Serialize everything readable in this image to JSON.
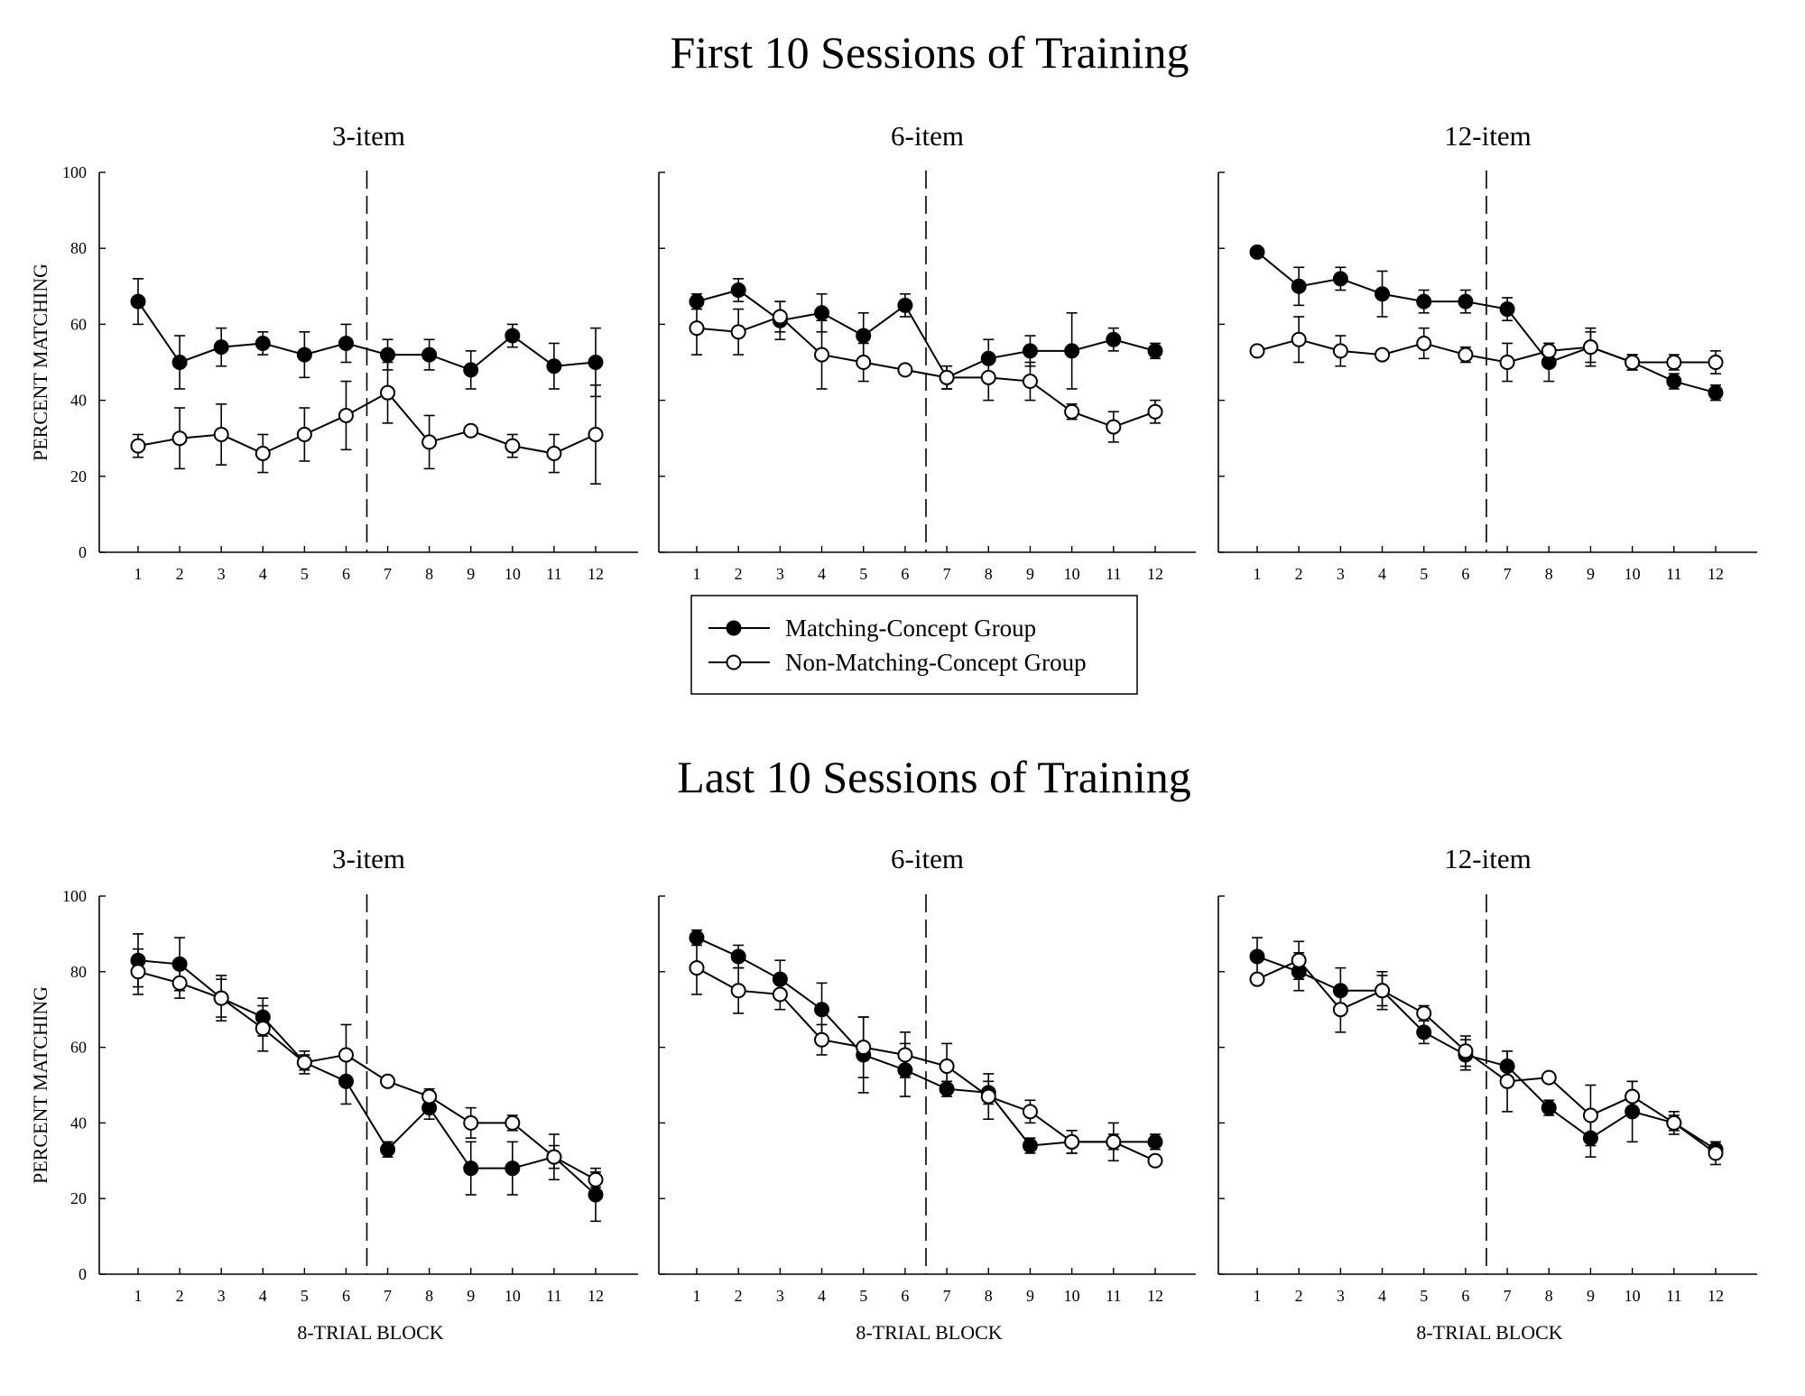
{
  "figure": {
    "colors": {
      "line": "#000000",
      "open_fill": "#ffffff",
      "filled": "#000000"
    }
  },
  "legend": {
    "entries": [
      "Matching-Concept Group",
      "Non-Matching-Concept Group"
    ]
  },
  "chart_data": [
    {
      "type": "line",
      "section_title": "First 10 Sessions of Training",
      "title": "3-item",
      "xlabel": "",
      "ylabel": "PERCENT MATCHING",
      "categories": [
        "1",
        "2",
        "3",
        "4",
        "5",
        "6",
        "7",
        "8",
        "9",
        "10",
        "11",
        "12"
      ],
      "ylim": [
        0,
        100
      ],
      "yticks": [
        "0",
        "20",
        "40",
        "60",
        "80",
        "100"
      ],
      "vline_between": [
        6,
        7
      ],
      "series": [
        {
          "name": "Matching-Concept Group",
          "marker": "filled",
          "values": [
            66,
            50,
            54,
            55,
            52,
            55,
            52,
            52,
            48,
            57,
            49,
            50
          ],
          "errors": [
            6,
            7,
            5,
            3,
            6,
            5,
            4,
            4,
            5,
            3,
            6,
            9
          ]
        },
        {
          "name": "Non-Matching-Concept Group",
          "marker": "open",
          "values": [
            28,
            30,
            31,
            26,
            31,
            36,
            42,
            29,
            32,
            28,
            26,
            31
          ],
          "errors": [
            3,
            8,
            8,
            5,
            7,
            9,
            8,
            7,
            1,
            3,
            5,
            13
          ]
        }
      ]
    },
    {
      "type": "line",
      "section_title": "First 10 Sessions of Training",
      "title": "6-item",
      "xlabel": "",
      "ylabel": "",
      "categories": [
        "1",
        "2",
        "3",
        "4",
        "5",
        "6",
        "7",
        "8",
        "9",
        "10",
        "11",
        "12"
      ],
      "ylim": [
        0,
        100
      ],
      "yticks": [],
      "vline_between": [
        6,
        7
      ],
      "series": [
        {
          "name": "Matching-Concept Group",
          "marker": "filled",
          "values": [
            66,
            69,
            61,
            63,
            57,
            65,
            46,
            51,
            53,
            53,
            56,
            53
          ],
          "errors": [
            2,
            3,
            5,
            5,
            6,
            3,
            3,
            5,
            4,
            10,
            3,
            2
          ]
        },
        {
          "name": "Non-Matching-Concept Group",
          "marker": "open",
          "values": [
            59,
            58,
            62,
            52,
            50,
            48,
            46,
            46,
            45,
            37,
            33,
            37
          ],
          "errors": [
            7,
            6,
            4,
            9,
            5,
            1,
            3,
            6,
            5,
            2,
            4,
            3
          ]
        }
      ]
    },
    {
      "type": "line",
      "section_title": "First 10 Sessions of Training",
      "title": "12-item",
      "xlabel": "",
      "ylabel": "",
      "categories": [
        "1",
        "2",
        "3",
        "4",
        "5",
        "6",
        "7",
        "8",
        "9",
        "10",
        "11",
        "12"
      ],
      "ylim": [
        0,
        100
      ],
      "yticks": [],
      "vline_between": [
        6,
        7
      ],
      "series": [
        {
          "name": "Matching-Concept Group",
          "marker": "filled",
          "values": [
            79,
            70,
            72,
            68,
            66,
            66,
            64,
            50,
            54,
            50,
            45,
            42
          ],
          "errors": [
            1,
            5,
            3,
            6,
            3,
            3,
            3,
            5,
            5,
            2,
            2,
            2
          ]
        },
        {
          "name": "Non-Matching-Concept Group",
          "marker": "open",
          "values": [
            53,
            56,
            53,
            52,
            55,
            52,
            50,
            53,
            54,
            50,
            50,
            50
          ],
          "errors": [
            1,
            6,
            4,
            1,
            4,
            2,
            5,
            2,
            4,
            2,
            2,
            3
          ]
        }
      ]
    },
    {
      "type": "line",
      "section_title": "Last 10 Sessions of Training",
      "title": "3-item",
      "xlabel": "8-TRIAL BLOCK",
      "ylabel": "PERCENT MATCHING",
      "categories": [
        "1",
        "2",
        "3",
        "4",
        "5",
        "6",
        "7",
        "8",
        "9",
        "10",
        "11",
        "12"
      ],
      "ylim": [
        0,
        100
      ],
      "yticks": [
        "0",
        "20",
        "40",
        "60",
        "80",
        "100"
      ],
      "vline_between": [
        6,
        7
      ],
      "series": [
        {
          "name": "Matching-Concept Group",
          "marker": "filled",
          "values": [
            83,
            82,
            73,
            68,
            56,
            51,
            33,
            44,
            28,
            28,
            31,
            21
          ],
          "errors": [
            7,
            7,
            6,
            5,
            3,
            6,
            2,
            3,
            7,
            7,
            6,
            7
          ]
        },
        {
          "name": "Non-Matching-Concept Group",
          "marker": "open",
          "values": [
            80,
            77,
            73,
            65,
            56,
            58,
            51,
            47,
            40,
            40,
            31,
            25
          ],
          "errors": [
            6,
            4,
            5,
            6,
            2,
            8,
            1,
            2,
            4,
            2,
            3,
            2
          ]
        }
      ]
    },
    {
      "type": "line",
      "section_title": "Last 10 Sessions of Training",
      "title": "6-item",
      "xlabel": "8-TRIAL BLOCK",
      "ylabel": "",
      "categories": [
        "1",
        "2",
        "3",
        "4",
        "5",
        "6",
        "7",
        "8",
        "9",
        "10",
        "11",
        "12"
      ],
      "ylim": [
        0,
        100
      ],
      "yticks": [],
      "vline_between": [
        6,
        7
      ],
      "series": [
        {
          "name": "Matching-Concept Group",
          "marker": "filled",
          "values": [
            89,
            84,
            78,
            70,
            58,
            54,
            49,
            48,
            34,
            35,
            35,
            35
          ],
          "errors": [
            2,
            3,
            5,
            7,
            10,
            7,
            2,
            3,
            2,
            3,
            2,
            2
          ]
        },
        {
          "name": "Non-Matching-Concept Group",
          "marker": "open",
          "values": [
            81,
            75,
            74,
            62,
            60,
            58,
            55,
            47,
            43,
            35,
            35,
            30
          ],
          "errors": [
            7,
            6,
            4,
            4,
            8,
            6,
            6,
            6,
            3,
            3,
            5,
            1
          ]
        }
      ]
    },
    {
      "type": "line",
      "section_title": "Last 10 Sessions of Training",
      "title": "12-item",
      "xlabel": "8-TRIAL BLOCK",
      "ylabel": "",
      "categories": [
        "1",
        "2",
        "3",
        "4",
        "5",
        "6",
        "7",
        "8",
        "9",
        "10",
        "11",
        "12"
      ],
      "ylim": [
        0,
        100
      ],
      "yticks": [],
      "vline_between": [
        6,
        7
      ],
      "series": [
        {
          "name": "Matching-Concept Group",
          "marker": "filled",
          "values": [
            84,
            80,
            75,
            75,
            64,
            58,
            55,
            44,
            36,
            43,
            40,
            33
          ],
          "errors": [
            5,
            5,
            6,
            5,
            3,
            4,
            4,
            2,
            5,
            8,
            3,
            2
          ]
        },
        {
          "name": "Non-Matching-Concept Group",
          "marker": "open",
          "values": [
            78,
            83,
            70,
            75,
            69,
            59,
            51,
            52,
            42,
            47,
            40,
            32
          ],
          "errors": [
            1,
            5,
            6,
            4,
            2,
            4,
            8,
            1,
            8,
            4,
            2,
            3
          ]
        }
      ]
    }
  ]
}
